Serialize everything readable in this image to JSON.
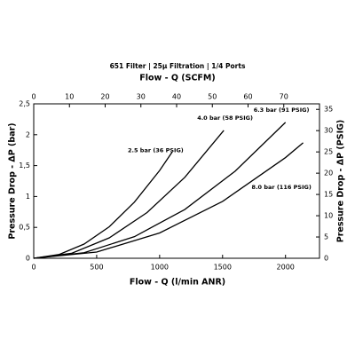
{
  "chart_data": {
    "type": "line",
    "title": "651 Filter | 25µ Filtration | 1/4 Ports",
    "x_label": "Flow - Q (l/min ANR)",
    "x2_label": "Flow - Q (SCFM)",
    "y_label": "Pressure Drop - ΔP (bar)",
    "y2_label": "Pressure Drop - ΔP (PSIG)",
    "xlim": [
      0,
      2270
    ],
    "xticks": [
      0,
      500,
      1000,
      1500,
      2000
    ],
    "x2lim": [
      0,
      80
    ],
    "x2ticks": [
      0,
      10,
      20,
      30,
      40,
      50,
      60,
      70
    ],
    "ylim": [
      0,
      2.5
    ],
    "yticks": [
      0,
      {
        "value": 0.5,
        "label": "0,5"
      },
      1,
      {
        "value": 1.5,
        "label": "1,5"
      },
      2,
      {
        "value": 2.5,
        "label": "2,5"
      }
    ],
    "y2lim": [
      0,
      36.3
    ],
    "y2ticks": [
      0,
      5,
      10,
      15,
      20,
      25,
      30,
      35
    ],
    "grid": false,
    "series": [
      {
        "name": "2.5 bar (36 PSIG)",
        "color": "#000000",
        "x": [
          0,
          200,
          400,
          600,
          800,
          1000,
          1100
        ],
        "values": [
          0,
          0.06,
          0.23,
          0.51,
          0.91,
          1.42,
          1.72
        ]
      },
      {
        "name": "4.0 bar (58 PSIG)",
        "color": "#000000",
        "x": [
          0,
          300,
          600,
          900,
          1200,
          1510
        ],
        "values": [
          0,
          0.08,
          0.33,
          0.74,
          1.31,
          2.07
        ]
      },
      {
        "name": "6.3 bar (91 PSIG)",
        "color": "#000000",
        "x": [
          0,
          400,
          800,
          1200,
          1600,
          2000
        ],
        "values": [
          0,
          0.09,
          0.35,
          0.79,
          1.41,
          2.2
        ]
      },
      {
        "name": "8.0 bar (116 PSIG)",
        "color": "#000000",
        "x": [
          0,
          500,
          1000,
          1500,
          2000,
          2140
        ],
        "values": [
          0,
          0.1,
          0.41,
          0.92,
          1.63,
          1.87
        ]
      }
    ]
  }
}
